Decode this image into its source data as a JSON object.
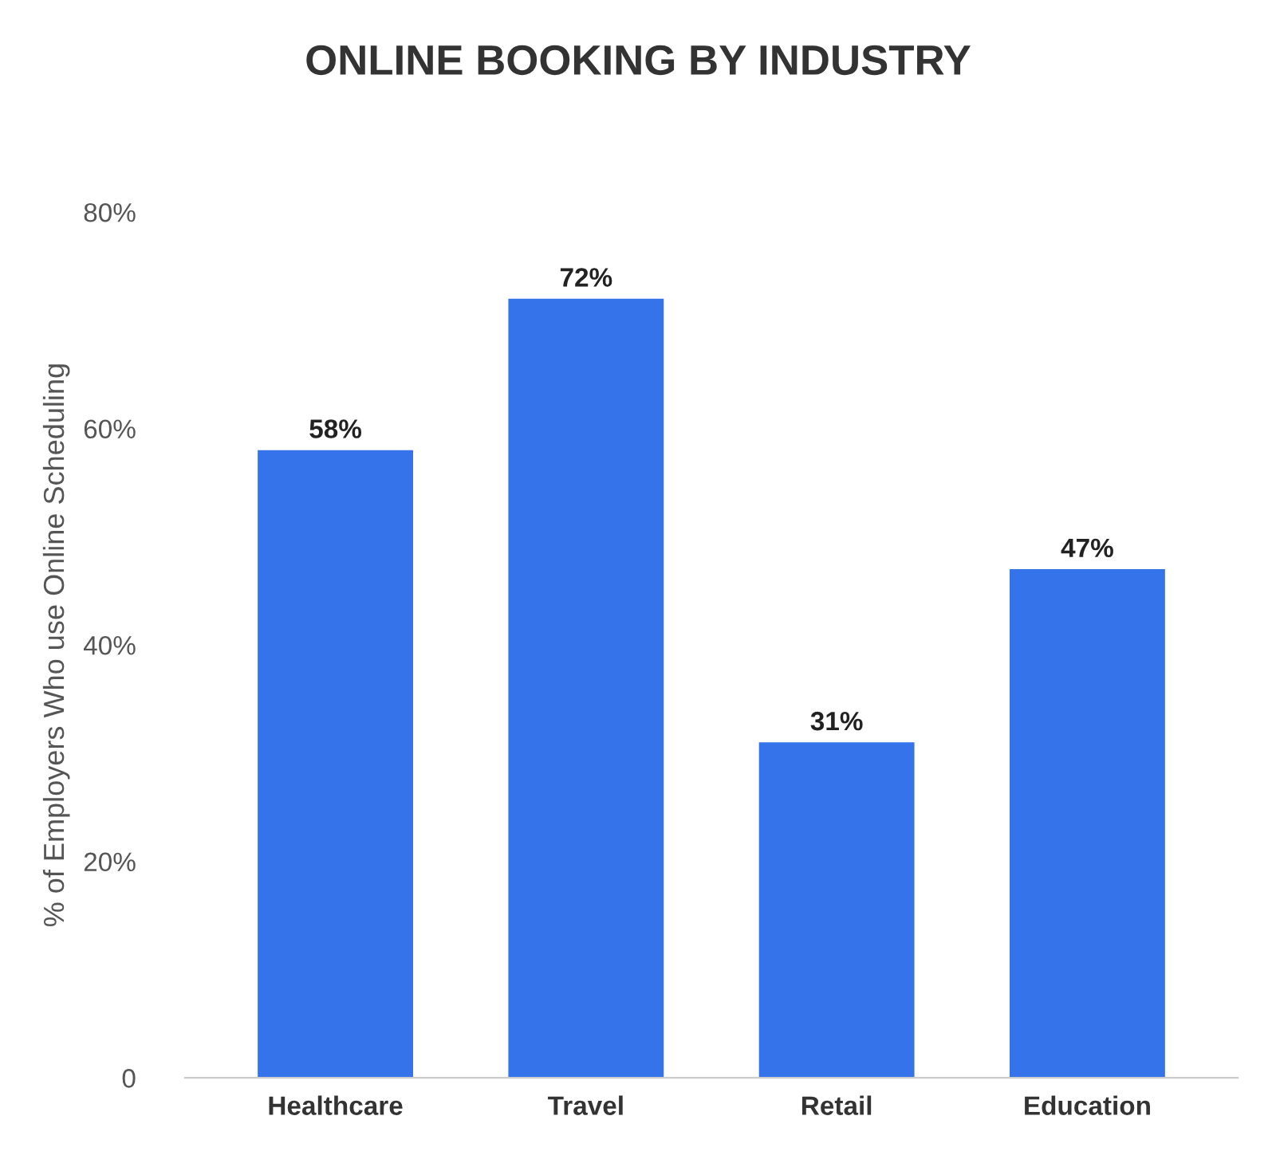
{
  "chart_data": {
    "type": "bar",
    "title": "ONLINE BOOKING BY INDUSTRY",
    "ylabel": "% of Employers Who use Online Scheduling",
    "categories": [
      "Healthcare",
      "Travel",
      "Retail",
      "Education"
    ],
    "values": [
      58,
      72,
      31,
      47
    ],
    "color": "#3473ea",
    "value_labels": [
      "58%",
      "72%",
      "31%",
      "47%"
    ],
    "ylim": [
      0,
      80
    ],
    "yticks": [
      0,
      {
        "value": 20,
        "label": "20%"
      },
      {
        "value": 40,
        "label": "40%"
      },
      {
        "value": 60,
        "label": "60%"
      },
      {
        "value": 80,
        "label": "80%"
      }
    ],
    "grid": false
  }
}
